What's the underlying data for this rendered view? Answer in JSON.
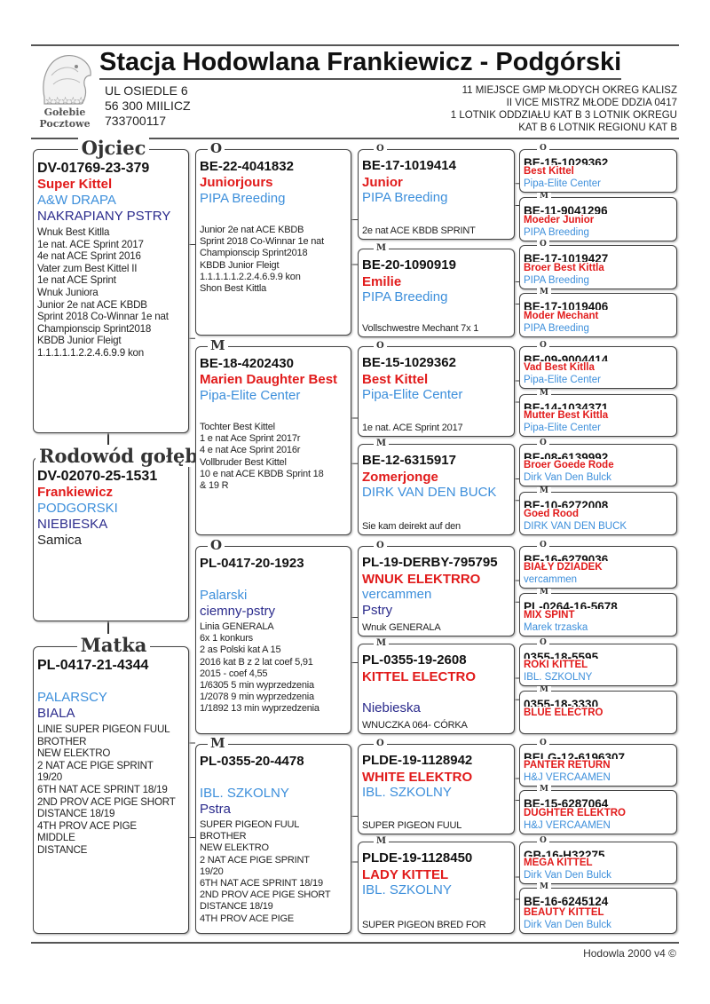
{
  "header": {
    "title": "Stacja Hodowlana Frankiewicz - Podgórski",
    "address": [
      "UL OSIEDLE 6",
      "56 300 MIILICZ",
      "733700117"
    ],
    "achievements": [
      "11 MIEJSCE GMP MŁODYCH OKREG KALISZ",
      "II VICE MISTRZ MŁODE DDZIA 0417",
      "1 LOTNIK ODDZIAŁU KAT B 3 LOTNIK OKREGU",
      "KAT B  6 LOTNIK REGIONU KAT B"
    ],
    "logo_text": [
      "☆☆☆☆☆",
      "Gołebie",
      "Pocztowe"
    ]
  },
  "colors": {
    "name": "#e11b1b",
    "owner": "#3d8fdb",
    "color": "#2b2b8c"
  },
  "gen1": [
    {
      "label": "Ojciec",
      "ring": "DV-01769-23-379",
      "name": "Super Kittel",
      "owner": "A&W DRAPA",
      "color": "NAKRAPIANY PSTRY",
      "notes": "Wnuk Best Kitlla\n1e nat. ACE Sprint 2017\n4e nat  ACE Sprint 2016\nVater zum Best Kittel II\n1e nat ACE Sprint\nWnuk Juniora\nJunior 2e nat ACE KBDB\nSprint 2018 Co-Winnar 1e nat\nChampionscip Sprint2018\nKBDB Junior Fleigt\n1.1.1.1.1.2.2.4.6.9.9 kon"
    },
    {
      "label": "Rodowód gołębia",
      "ring": "DV-02070-25-1531",
      "name": "Frankiewicz",
      "owner": "PODGORSKI",
      "color": "NIEBIESKA",
      "sex": "Samica"
    },
    {
      "label": "Matka",
      "ring": "PL-0417-21-4344",
      "name": "",
      "owner": "PALARSCY",
      "color": "BIALA",
      "notes": "LINIE SUPER PIGEON FUUL\nBROTHER\nNEW ELEKTRO\n2 NAT ACE PIGE SPRINT\n19/20\n6TH NAT ACE SPRINT 18/19\n2ND PROV ACE PIGE SHORT\nDISTANCE 18/19\n4TH PROV ACE PIGE\nMIDDLE\nDISTANCE"
    }
  ],
  "gen2": [
    {
      "label": "O",
      "ring": "BE-22-4041832",
      "name": "Juniorjours",
      "owner": "PIPA Breeding",
      "color": "",
      "notes": "Junior 2e nat ACE KBDB\nSprint 2018 Co-Winnar 1e nat\nChampionscip Sprint2018\nKBDB Junior Fleigt\n1.1.1.1.1.2.2.4.6.9.9 kon\nShon Best Kittla"
    },
    {
      "label": "M",
      "ring": "BE-18-4202430",
      "name": "Marien Daughter Best",
      "owner": "Pipa-Elite Center",
      "color": "",
      "notes": "Tochter Best Kittel\n1 e nat Ace Sprint 2017r\n4 e nat Ace Sprint 2016r\nVollbruder Best Kittel\n10 e nat ACE KBDB Sprint 18\n& 19 R"
    },
    {
      "label": "O",
      "ring": "PL-0417-20-1923",
      "name": "",
      "owner": "Palarski",
      "color": "ciemny-pstry",
      "notes": "Linia GENERALA\n6x 1 konkurs\n2 as  Polski kat A 15\n2016 kat B z 2 lat coef 5,91\n2015 - coef 4,55\n1/6305 5 min wyprzedzenia\n1/2078 9 min wyprzedzenia\n1/1892 13 min wyprzedzenia"
    },
    {
      "label": "M",
      "ring": "PL-0355-20-4478",
      "name": "",
      "owner": "IBL. SZKOLNY",
      "color": "Pstra",
      "notes": "SUPER PIGEON FUUL\nBROTHER\nNEW ELEKTRO\n2 NAT ACE PIGE SPRINT\n19/20\n6TH NAT ACE SPRINT 18/19\n2ND PROV ACE PIGE SHORT\nDISTANCE 18/19\n4TH PROV ACE PIGE"
    }
  ],
  "gen3": [
    {
      "label": "O",
      "ring": "BE-17-1019414",
      "name": "Junior",
      "owner": "PIPA Breeding",
      "color": "",
      "notes": "2e nat ACE KBDB SPRINT"
    },
    {
      "label": "M",
      "ring": "BE-20-1090919",
      "name": "Emilie",
      "owner": "PIPA Breeding",
      "color": "",
      "notes": "Vollschwestre Mechant  7x 1"
    },
    {
      "label": "O",
      "ring": "BE-15-1029362",
      "name": "Best Kittel",
      "owner": "Pipa-Elite Center",
      "color": "",
      "notes": "1e nat. ACE Sprint 2017"
    },
    {
      "label": "M",
      "ring": "BE-12-6315917",
      "name": "Zomerjonge",
      "owner": "DIRK VAN DEN BUCK",
      "color": "",
      "notes": "Sie kam deirekt auf den"
    },
    {
      "label": "O",
      "ring": "PL-19-DERBY-795795",
      "name": "WNUK ELEKTRRO",
      "owner": "vercammen",
      "color": "Pstry",
      "notes": "Wnuk GENERALA"
    },
    {
      "label": "M",
      "ring": "PL-0355-19-2608",
      "name": "KITTEL ELECTRO",
      "owner": "",
      "color": "Niebieska",
      "notes": "WNUCZKA 064- CÓRKA"
    },
    {
      "label": "O",
      "ring": "PLDE-19-1128942",
      "name": "WHITE ELEKTRO",
      "owner": "IBL. SZKOLNY",
      "color": "",
      "notes": "SUPER PIGEON FUUL"
    },
    {
      "label": "M",
      "ring": "PLDE-19-1128450",
      "name": "LADY KITTEL",
      "owner": "IBL. SZKOLNY",
      "color": "",
      "notes": "SUPER PIGEON BRED FOR"
    }
  ],
  "gen4": [
    {
      "label": "O",
      "ring": "BE-15-1029362",
      "name": "Best Kittel",
      "owner": "Pipa-Elite Center"
    },
    {
      "label": "M",
      "ring": "BE-11-9041296",
      "name": "Moeder Junior",
      "owner": "PIPA Breeding"
    },
    {
      "label": "O",
      "ring": "BE-17-1019427",
      "name": "Broer Best Kittla",
      "owner": "PIPA Breeding"
    },
    {
      "label": "M",
      "ring": "BE-17-1019406",
      "name": "Moder Mechant",
      "owner": "PIPA Breeding"
    },
    {
      "label": "O",
      "ring": "BE-09-9004414",
      "name": "Vad Best Kitlla",
      "owner": "Pipa-Elite Center"
    },
    {
      "label": "M",
      "ring": "BE-14-1034371",
      "name": "Mutter Best  Kittla",
      "owner": "Pipa-Elite Center"
    },
    {
      "label": "O",
      "ring": "BE-08-6139992",
      "name": "Broer Goede Rode",
      "owner": "Dirk Van Den Bulck"
    },
    {
      "label": "M",
      "ring": "BE-10-6272008",
      "name": "Goed Rood",
      "owner": "DIRK VAN DEN BUCK"
    },
    {
      "label": "O",
      "ring": "BE-16-6279036",
      "name": "BIAŁY DZIADEK",
      "owner": "vercammen"
    },
    {
      "label": "M",
      "ring": "PL-0264-16-5678",
      "name": "MIX SPINT",
      "owner": "Marek trzaska"
    },
    {
      "label": "O",
      "ring": "0355-18-5595",
      "name": "ROKI KITTEL",
      "owner": "IBL. SZKOLNY"
    },
    {
      "label": "M",
      "ring": "0355-18-3330",
      "name": "BLUE ELECTRO",
      "owner": ""
    },
    {
      "label": "O",
      "ring": "BELG-12-6196307",
      "name": "PANTER RETURN",
      "owner": "H&J VERCAAMEN"
    },
    {
      "label": "M",
      "ring": "BE-15-6287064",
      "name": "DUGHTER ELEKTRO",
      "owner": "H&J VERCAAMEN"
    },
    {
      "label": "O",
      "ring": "GB-16-H32275",
      "name": "MEGA KITTEL",
      "owner": "Dirk Van Den Bulck"
    },
    {
      "label": "M",
      "ring": "BE-16-6245124",
      "name": "BEAUTY KITTEL",
      "owner": "Dirk Van Den Bulck"
    }
  ],
  "footer": "Hodowla 2000 v4 ©"
}
